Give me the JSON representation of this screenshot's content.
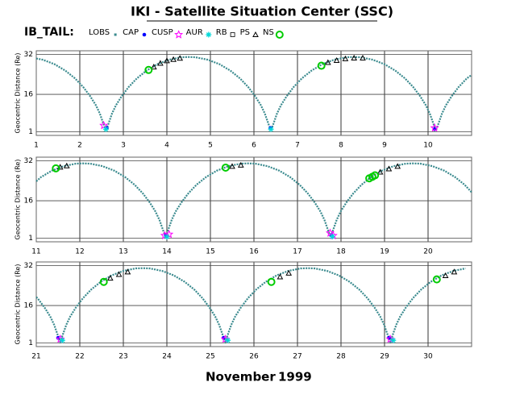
{
  "title": "IKI - Satellite Situation Center (SSC)",
  "legend_title": "IB_TAIL:",
  "xlabel": {
    "month": "November",
    "year": "1999"
  },
  "chart_data": [
    {
      "type": "line",
      "ylabel": "Geocentric Distance (Re)",
      "xlim": [
        1,
        11
      ],
      "xticks": [
        1,
        2,
        3,
        4,
        5,
        6,
        7,
        8,
        9,
        10
      ],
      "ylim": [
        -0.5,
        33.5
      ],
      "yticks": [
        1,
        16,
        32
      ],
      "grid": true,
      "series": [
        {
          "name": "LOBS",
          "color": "#3a8a8e",
          "marker": "line",
          "x": [
            1.0,
            1.15,
            1.42,
            1.67,
            1.89,
            2.08,
            2.24,
            2.37,
            2.46,
            2.56,
            2.6,
            2.64,
            2.74,
            2.83,
            2.96,
            3.12,
            3.31,
            3.53,
            3.78,
            4.05,
            4.33,
            4.495,
            4.66,
            4.94,
            5.21,
            5.46,
            5.68,
            5.87,
            6.03,
            6.16,
            6.25,
            6.35,
            6.39,
            6.43,
            6.53,
            6.62,
            6.75,
            6.91,
            7.1,
            7.32,
            7.57,
            7.84,
            8.12,
            8.285,
            8.45,
            8.73,
            9.0,
            9.25,
            9.47,
            9.66,
            9.82,
            9.95,
            10.04,
            10.14,
            10.18,
            10.22,
            10.32,
            10.41,
            10.54,
            10.7,
            10.89,
            11.0
          ],
          "values": [
            30.4,
            29.9,
            28.1,
            25.5,
            22.4,
            18.9,
            15.2,
            11.6,
            8.28,
            3.3,
            1.49,
            3.3,
            8.28,
            11.6,
            15.2,
            18.9,
            22.4,
            25.5,
            28.1,
            29.9,
            30.9,
            31.0,
            30.9,
            29.9,
            28.1,
            25.5,
            22.4,
            18.9,
            15.2,
            11.6,
            8.28,
            3.3,
            1.49,
            3.3,
            8.28,
            11.6,
            15.2,
            18.9,
            22.4,
            25.5,
            28.1,
            29.9,
            30.9,
            31.0,
            30.9,
            29.9,
            28.1,
            25.5,
            22.4,
            18.9,
            15.2,
            11.6,
            8.28,
            3.3,
            1.49,
            3.3,
            8.28,
            11.6,
            15.2,
            18.9,
            22.4,
            23.8
          ]
        },
        {
          "name": "CAP",
          "color": "#0000ff",
          "marker": "dot",
          "x": [
            2.62,
            6.38,
            10.15
          ],
          "values": [
            2.5,
            2.5,
            2.0
          ]
        },
        {
          "name": "CUSP",
          "color": "#ff00ff",
          "marker": "star",
          "x": [
            2.55,
            10.15
          ],
          "values": [
            3.5,
            2.5
          ]
        },
        {
          "name": "AUR",
          "color": "#00d8d8",
          "marker": "asterisk",
          "x": [
            2.6,
            6.39
          ],
          "values": [
            2.0,
            2.0
          ]
        },
        {
          "name": "RB",
          "color": "#000000",
          "marker": "box",
          "x": [],
          "values": []
        },
        {
          "name": "PS",
          "color": "#000000",
          "marker": "triangle",
          "x": [
            3.7,
            3.85,
            4.0,
            4.15,
            4.3,
            7.7,
            7.9,
            8.1,
            8.3,
            8.5
          ],
          "values": [
            27,
            28.5,
            29.5,
            30,
            30.5,
            28.8,
            29.6,
            30.3,
            30.6,
            30.6
          ]
        },
        {
          "name": "NS",
          "color": "#00cc00",
          "marker": "circle",
          "x": [
            3.58,
            7.55
          ],
          "values": [
            25.8,
            27.5
          ]
        }
      ]
    },
    {
      "type": "line",
      "ylabel": "Geocentric Distance (Re)",
      "xlim": [
        11,
        21
      ],
      "xticks": [
        11,
        12,
        13,
        14,
        15,
        16,
        17,
        18,
        19,
        20
      ],
      "ylim": [
        -0.5,
        33.5
      ],
      "yticks": [
        1,
        16,
        32
      ],
      "grid": true,
      "series": [
        {
          "name": "LOBS",
          "color": "#3a8a8e",
          "marker": "line",
          "x": [
            11.0,
            11.11,
            11.36,
            11.63,
            11.91,
            12.075,
            12.24,
            12.52,
            12.79,
            13.04,
            13.26,
            13.45,
            13.61,
            13.74,
            13.83,
            13.93,
            13.97,
            14.01,
            14.11,
            14.2,
            14.33,
            14.49,
            14.68,
            14.9,
            15.15,
            15.42,
            15.7,
            15.865,
            16.03,
            16.31,
            16.58,
            16.83,
            17.05,
            17.24,
            17.4,
            17.53,
            17.62,
            17.72,
            17.76,
            17.8,
            17.9,
            17.99,
            18.12,
            18.28,
            18.47,
            18.69,
            18.94,
            19.21,
            19.49,
            19.655,
            19.82,
            20.1,
            20.37,
            20.62,
            20.84,
            21.0
          ],
          "values": [
            23.8,
            25.5,
            28.1,
            29.9,
            30.9,
            31.0,
            30.9,
            29.9,
            28.1,
            25.5,
            22.4,
            18.9,
            15.2,
            11.6,
            8.28,
            3.3,
            1.49,
            3.3,
            8.28,
            11.6,
            15.2,
            18.9,
            22.4,
            25.5,
            28.1,
            29.9,
            30.9,
            31.0,
            30.9,
            29.9,
            28.1,
            25.5,
            22.4,
            18.9,
            15.2,
            11.6,
            8.28,
            3.3,
            1.49,
            3.3,
            8.28,
            11.6,
            15.2,
            18.9,
            22.4,
            25.5,
            28.1,
            29.9,
            30.9,
            31.0,
            30.9,
            29.9,
            28.1,
            25.5,
            22.4,
            19.4
          ]
        },
        {
          "name": "CAP",
          "color": "#0000ff",
          "marker": "dot",
          "x": [
            13.98,
            17.78
          ],
          "values": [
            2.2,
            2.2
          ]
        },
        {
          "name": "CUSP",
          "color": "#ff00ff",
          "marker": "star",
          "x": [
            13.95,
            14.05,
            17.75,
            17.82
          ],
          "values": [
            2.0,
            2.5,
            3.0,
            2.0
          ]
        },
        {
          "name": "AUR",
          "color": "#00d8d8",
          "marker": "asterisk",
          "x": [
            14.0,
            17.8
          ],
          "values": [
            1.5,
            1.6
          ]
        },
        {
          "name": "RB",
          "color": "#000000",
          "marker": "box",
          "x": [],
          "values": []
        },
        {
          "name": "PS",
          "color": "#000000",
          "marker": "triangle",
          "x": [
            11.55,
            11.7,
            15.5,
            15.7,
            18.9,
            19.1,
            19.3
          ],
          "values": [
            29.5,
            30,
            29.8,
            30.3,
            27.5,
            28.8,
            29.8
          ]
        },
        {
          "name": "NS",
          "color": "#00cc00",
          "marker": "circle",
          "x": [
            11.45,
            15.35,
            18.65,
            18.72,
            18.78
          ],
          "values": [
            29.0,
            29.3,
            25.0,
            25.6,
            26.2
          ]
        }
      ]
    },
    {
      "type": "line",
      "ylabel": "Geocentric Distance (Re)",
      "xlim": [
        21,
        31
      ],
      "xticks": [
        21,
        22,
        23,
        24,
        25,
        26,
        27,
        28,
        29,
        30
      ],
      "ylim": [
        -0.5,
        33.5
      ],
      "yticks": [
        1,
        16,
        32
      ],
      "grid": true,
      "series": [
        {
          "name": "LOBS",
          "color": "#3a8a8e",
          "marker": "line",
          "x": [
            21.0,
            21.03,
            21.19,
            21.32,
            21.41,
            21.51,
            21.55,
            21.59,
            21.69,
            21.78,
            21.91,
            22.07,
            22.26,
            22.48,
            22.73,
            23.0,
            23.28,
            23.445,
            23.61,
            23.89,
            24.16,
            24.41,
            24.63,
            24.82,
            24.98,
            25.11,
            25.2,
            25.3,
            25.34,
            25.38,
            25.48,
            25.57,
            25.7,
            25.86,
            26.05,
            26.27,
            26.52,
            26.79,
            27.07,
            27.235,
            27.4,
            27.68,
            27.95,
            28.2,
            28.42,
            28.61,
            28.77,
            28.9,
            28.99,
            29.09,
            29.13,
            29.17,
            29.27,
            29.36,
            29.49,
            29.65,
            29.84,
            30.06,
            30.31,
            30.58,
            30.86
          ],
          "values": [
            19.4,
            18.9,
            15.2,
            11.6,
            8.28,
            3.3,
            1.49,
            3.3,
            8.28,
            11.6,
            15.2,
            18.9,
            22.4,
            25.5,
            28.1,
            29.9,
            30.9,
            31.0,
            30.9,
            29.9,
            28.1,
            25.5,
            22.4,
            18.9,
            15.2,
            11.6,
            8.28,
            3.3,
            1.49,
            3.3,
            8.28,
            11.6,
            15.2,
            18.9,
            22.4,
            25.5,
            28.1,
            29.9,
            30.9,
            31.0,
            30.9,
            29.9,
            28.1,
            25.5,
            22.4,
            18.9,
            15.2,
            11.6,
            8.28,
            3.3,
            1.49,
            3.3,
            8.28,
            11.6,
            15.2,
            18.9,
            22.4,
            25.5,
            28.1,
            29.9,
            30.9
          ]
        },
        {
          "name": "CAP",
          "color": "#0000ff",
          "marker": "dot",
          "x": [
            21.5,
            25.3,
            29.1
          ],
          "values": [
            3.0,
            3.0,
            3.0
          ]
        },
        {
          "name": "CUSP",
          "color": "#ff00ff",
          "marker": "star",
          "x": [
            21.55,
            25.34,
            29.13
          ],
          "values": [
            2.5,
            2.5,
            2.5
          ]
        },
        {
          "name": "AUR",
          "color": "#00d8d8",
          "marker": "asterisk",
          "x": [
            21.6,
            25.4,
            29.2
          ],
          "values": [
            2.0,
            2.0,
            2.0
          ]
        },
        {
          "name": "RB",
          "color": "#000000",
          "marker": "box",
          "x": [],
          "values": []
        },
        {
          "name": "PS",
          "color": "#000000",
          "marker": "triangle",
          "x": [
            22.7,
            22.9,
            23.1,
            26.6,
            26.8,
            30.4,
            30.6
          ],
          "values": [
            27,
            28.5,
            29.5,
            27.5,
            29,
            28,
            29.5
          ]
        },
        {
          "name": "NS",
          "color": "#00cc00",
          "marker": "circle",
          "x": [
            22.55,
            26.4,
            30.2
          ],
          "values": [
            25.5,
            25.5,
            26.5
          ]
        }
      ]
    }
  ]
}
